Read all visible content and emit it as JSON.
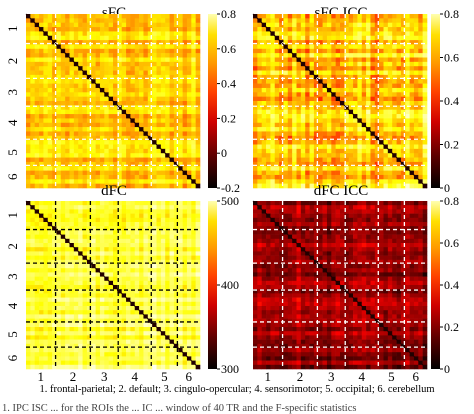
{
  "chart_data": [
    {
      "type": "heatmap",
      "title": "sFC",
      "colormap": "hot",
      "colorbar_range": [
        -0.2,
        0.8
      ],
      "colorbar_ticks": [
        "0.8",
        "0.6",
        "0.4",
        "0.2",
        "0",
        "-0.2"
      ],
      "row_labels": [
        "1",
        "2",
        "3",
        "4",
        "5",
        "6"
      ],
      "column_labels": [],
      "approx_value_range": [
        0.3,
        0.7
      ],
      "diagonal": "dark line",
      "network_boundaries": "white dashed lines"
    },
    {
      "type": "heatmap",
      "title": "sFC ICC",
      "colormap": "hot",
      "colorbar_range": [
        0,
        0.8
      ],
      "colorbar_ticks": [
        "0.8",
        "0.6",
        "0.4",
        "0.2",
        "0"
      ],
      "row_labels": [],
      "column_labels": [],
      "approx_value_range": [
        0.3,
        0.8
      ],
      "diagonal": "dark line",
      "network_boundaries": "white dashed lines"
    },
    {
      "type": "heatmap",
      "title": "dFC",
      "colormap": "hot",
      "colorbar_range": [
        300,
        500
      ],
      "colorbar_ticks": [
        "500",
        "400",
        "300"
      ],
      "row_labels": [
        "1",
        "2",
        "3",
        "4",
        "5",
        "6"
      ],
      "column_labels": [
        "1",
        "2",
        "3",
        "4",
        "5",
        "6"
      ],
      "approx_value_range": [
        430,
        500
      ],
      "diagonal": "dark line",
      "network_boundaries": "black dashed lines"
    },
    {
      "type": "heatmap",
      "title": "dFC ICC",
      "colormap": "hot",
      "colorbar_range": [
        0,
        0.8
      ],
      "colorbar_ticks": [
        "0.8",
        "0.6",
        "0.4",
        "0.2",
        "0"
      ],
      "row_labels": [],
      "column_labels": [
        "1",
        "2",
        "3",
        "4",
        "5",
        "6"
      ],
      "approx_value_range": [
        0,
        0.35
      ],
      "diagonal": "dark line",
      "network_boundaries": "white dashed lines"
    }
  ],
  "legend_text": "1. frontal-parietal; 2. default; 3. cingulo-opercular; 4. sensorimotor; 5. occipital; 6. cerebellum",
  "caption_partial": "1. IPC ISC ... for the ROIs the ... IC ... window of 40 TR and the F-specific statistics"
}
